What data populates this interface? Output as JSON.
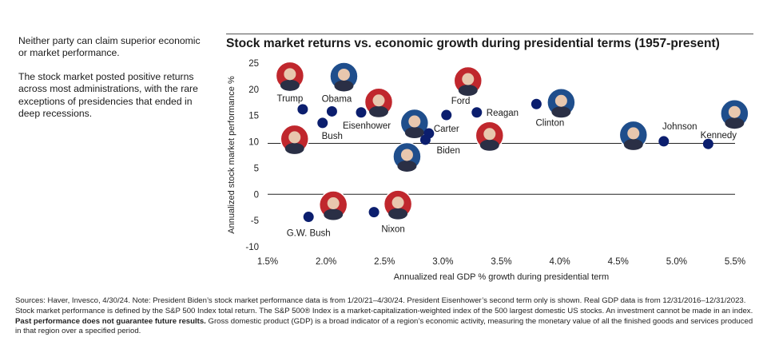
{
  "sidebar": {
    "paragraph1": "Neither party can claim superior economic or market performance.",
    "paragraph2": "The stock market posted positive returns across most administrations, with the rare exceptions of presidencies that ended in deep recessions."
  },
  "footnote": {
    "part1": "Sources: Haver, Invesco, 4/30/24. Note: President Biden’s stock market performance data is from 1/20/21–4/30/24. President Eisenhower’s second term only is shown. Real GDP data is from 12/31/2016–12/31/2023. Stock market performance is defined by the S&P 500 Index total return. The S&P 500® Index is a market-capitalization-weighted index of the 500 largest domestic US stocks. An investment cannot be made in an index. ",
    "bold": "Past performance does not guarantee future results.",
    "part2": " Gross domestic product (GDP) is a broad indicator of a region’s economic activity, measuring the monetary value of all the finished goods and services produced in that region over a specified period."
  },
  "colors": {
    "point": "#0b1e6e",
    "republican": "#c0272d",
    "democrat": "#1f4e8c",
    "axis": "#222222"
  },
  "chart_data": {
    "type": "scatter",
    "title": "Stock market returns vs. economic growth during presidential terms (1957-present)",
    "xlabel": "Annualized real GDP % growth during presidential term",
    "ylabel": "Annualized stock market performance %",
    "xlim": [
      1.5,
      5.5
    ],
    "ylim": [
      -10,
      25
    ],
    "xticks": [
      1.5,
      2.0,
      2.5,
      3.0,
      3.5,
      4.0,
      4.5,
      5.0,
      5.5
    ],
    "xtick_labels": [
      "1.5%",
      "2.0%",
      "2.5%",
      "3.0%",
      "3.5%",
      "4.0%",
      "4.5%",
      "5.0%",
      "5.5%"
    ],
    "yticks": [
      -10,
      -5,
      0,
      5,
      10,
      15,
      20,
      25
    ],
    "ytick_labels": [
      "-10",
      "-5",
      "0",
      "5",
      "10",
      "15",
      "20",
      "25"
    ],
    "reference_line_y": 9.7,
    "points": [
      {
        "name": "Trump",
        "party": "R",
        "x": 1.8,
        "y": 16.2
      },
      {
        "name": "Obama",
        "party": "D",
        "x": 2.05,
        "y": 15.8
      },
      {
        "name": "Bush",
        "party": "R",
        "x": 1.97,
        "y": 13.6
      },
      {
        "name": "Eisenhower",
        "party": "R",
        "x": 2.3,
        "y": 15.6
      },
      {
        "name": "Carter",
        "party": "D",
        "x": 2.88,
        "y": 11.6
      },
      {
        "name": "Biden",
        "party": "D",
        "x": 2.85,
        "y": 10.4
      },
      {
        "name": "Ford",
        "party": "R",
        "x": 3.03,
        "y": 15.1
      },
      {
        "name": "Reagan",
        "party": "R",
        "x": 3.29,
        "y": 15.6
      },
      {
        "name": "Clinton",
        "party": "D",
        "x": 3.8,
        "y": 17.2
      },
      {
        "name": "Johnson",
        "party": "D",
        "x": 4.89,
        "y": 10.1
      },
      {
        "name": "Kennedy",
        "party": "D",
        "x": 5.27,
        "y": 9.6
      },
      {
        "name": "G.W. Bush",
        "party": "R",
        "x": 1.85,
        "y": -4.3
      },
      {
        "name": "Nixon",
        "party": "R",
        "x": 2.41,
        "y": -3.4
      }
    ]
  }
}
